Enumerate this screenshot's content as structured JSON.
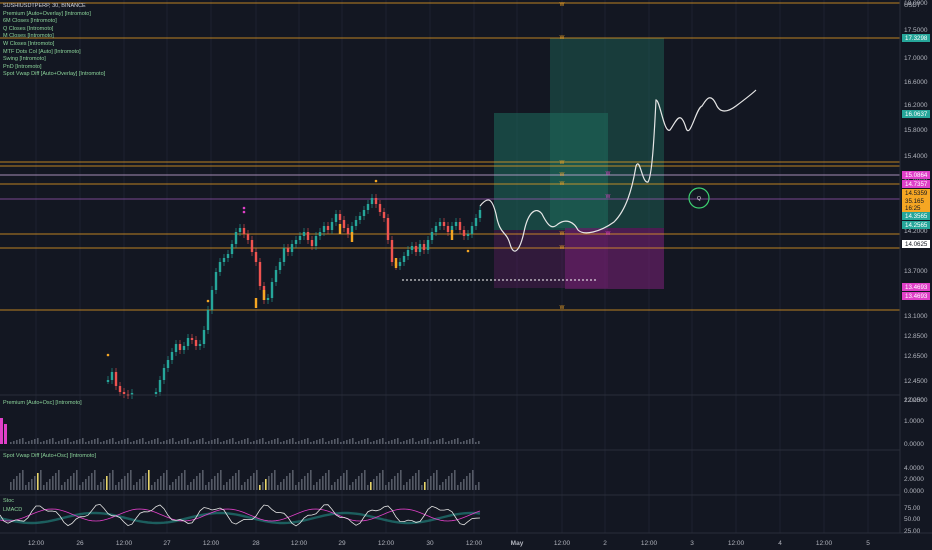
{
  "legend": {
    "symbol": "SUSHIUSDTPERP, 30, BINANCE",
    "indicators": [
      "Premium [Auto+Overlay] [Intromoto]",
      "6M Closes [Intromoto]",
      "Q Closes [Intromoto]",
      "M Closes [Intromoto]",
      "W Closes [Intromoto]",
      "MTF Dots Col [Auto] [Intromoto]",
      "Swing [Intromoto]",
      "PnD [Intromoto]",
      "Spot Vwap Diff [Auto+Overlay] [Intromoto]"
    ]
  },
  "price_axis": {
    "currency": "USDT",
    "ticks": [
      "18.0000",
      "17.5000",
      "17.0000",
      "16.6000",
      "16.2000",
      "15.8000",
      "15.4000",
      "15.0000",
      "14.6000",
      "14.2000",
      "13.7000",
      "13.1000",
      "12.8500",
      "12.6500",
      "12.4500",
      "12.2500"
    ],
    "tags": [
      {
        "label": "17.3298",
        "color": "#26a69a",
        "text_color": "#ffffff"
      },
      {
        "label": "16.0637",
        "color": "#26a69a",
        "text_color": "#ffffff"
      },
      {
        "label": "15.0864",
        "color": "#e040c8",
        "text_color": "#ffffff"
      },
      {
        "label": "14.7357",
        "color": "#e040c8",
        "text_color": "#ffffff"
      },
      {
        "label": "14.5359",
        "color": "#f5a623",
        "text_color": "#131722"
      },
      {
        "label": "35.165",
        "color": "#f5a623",
        "text_color": "#131722"
      },
      {
        "label": "16:25",
        "color": "#f5a623",
        "text_color": "#131722"
      },
      {
        "label": "14.3565",
        "color": "#26a69a",
        "text_color": "#ffffff"
      },
      {
        "label": "14.2565",
        "color": "#26a69a",
        "text_color": "#ffffff"
      },
      {
        "label": "14.0625",
        "color": "#ffffff",
        "text_color": "#131722"
      },
      {
        "label": "13.4693",
        "color": "#e040c8",
        "text_color": "#ffffff"
      },
      {
        "label": "13.4693",
        "color": "#e040c8",
        "text_color": "#ffffff"
      }
    ]
  },
  "panes": {
    "premium": {
      "label": "Premium [Auto+Osc] [Intromoto]",
      "ticks": [
        "2.0000",
        "1.0000",
        "0.0000"
      ]
    },
    "spot_vwap": {
      "label": "Spot Vwap Diff [Auto+Osc] [Intromoto]",
      "ticks": [
        "4.0000",
        "2.0000",
        "0.0000"
      ]
    },
    "stoch": {
      "labels": [
        "Stoc",
        "LMACD"
      ],
      "ticks": [
        "75.00",
        "50.00",
        "25.00"
      ]
    }
  },
  "time_axis": {
    "ticks": [
      "12:00",
      "26",
      "12:00",
      "27",
      "12:00",
      "28",
      "12:00",
      "29",
      "12:00",
      "30",
      "12:00",
      "May",
      "12:00",
      "2",
      "12:00",
      "3",
      "12:00",
      "4",
      "12:00",
      "5"
    ]
  },
  "markers": {
    "week_label": "W",
    "quarter_label": "Q"
  },
  "colors": {
    "background": "#131722",
    "up": "#26a69a",
    "down": "#ef5350",
    "orange_level": "#f5a623",
    "magenta": "#e040c8",
    "long_box": "#1e6b5c",
    "short_box": "#6b1f6b",
    "projection": "#e6e6e6",
    "circle": "#3cd070"
  }
}
